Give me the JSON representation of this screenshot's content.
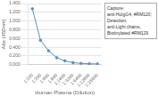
{
  "chart_data": {
    "type": "line",
    "categories": [
      "1:100",
      "1:200",
      "1:400",
      "1:800",
      "1:1600",
      "1:3200",
      "1:6400",
      "1:12800",
      "1:25600"
    ],
    "values": [
      1.28,
      0.56,
      0.32,
      0.16,
      0.09,
      0.048,
      0.03,
      0.022,
      0.018
    ],
    "color": "#5b8ec4",
    "marker": "circle",
    "xlabel": "Human Plasma (Dilution)",
    "ylabel": "Abs (450nm)",
    "ylim": [
      0.0,
      1.4
    ],
    "yticks": [
      {
        "value": 0.0,
        "label": "0.000"
      },
      {
        "value": 0.2,
        "label": "0.200"
      },
      {
        "value": 0.4,
        "label": "0.400"
      },
      {
        "value": 0.6,
        "label": "0.600"
      },
      {
        "value": 0.8,
        "label": "0.800"
      },
      {
        "value": 1.0,
        "label": "1.000"
      },
      {
        "value": 1.2,
        "label": "1.200"
      },
      {
        "value": 1.4,
        "label": "1.400"
      }
    ],
    "grid": true,
    "annotations": [
      "Capture:",
      "anti-HuIgG4, #RM120;",
      "Detection:",
      "anti-Light chains,",
      "Biotinylated #RM129"
    ]
  }
}
